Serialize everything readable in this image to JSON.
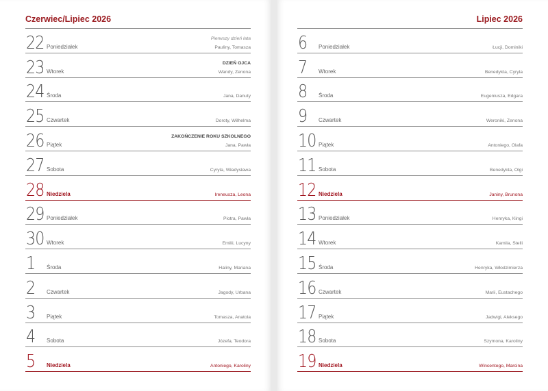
{
  "accent_color": "#a0141e",
  "left": {
    "title": "Czerwiec/Lipiec 2026",
    "days": [
      {
        "num": "22",
        "day": "Poniedziałek",
        "names": "Pauliny, Tomasza",
        "event": "Pierwszy dzień lata",
        "event_style": "italic"
      },
      {
        "num": "23",
        "day": "Wtorek",
        "names": "Wandy, Zenona",
        "event": "DZIEŃ OJCA",
        "event_style": "bold"
      },
      {
        "num": "24",
        "day": "Środa",
        "names": "Jana, Danuty"
      },
      {
        "num": "25",
        "day": "Czwartek",
        "names": "Doroty, Wilhelma"
      },
      {
        "num": "26",
        "day": "Piątek",
        "names": "Jana, Pawła",
        "event": "ZAKOŃCZENIE ROKU SZKOLNEGO",
        "event_style": "bold"
      },
      {
        "num": "27",
        "day": "Sobota",
        "names": "Cyryla, Władysława"
      },
      {
        "num": "28",
        "day": "Niedziela",
        "names": "Ireneusza, Leona",
        "sunday": true
      },
      {
        "num": "29",
        "day": "Poniedziałek",
        "names": "Piotra, Pawła"
      },
      {
        "num": "30",
        "day": "Wtorek",
        "names": "Emilii, Lucyny"
      },
      {
        "num": "1",
        "day": "Środa",
        "names": "Haliny, Mariana"
      },
      {
        "num": "2",
        "day": "Czwartek",
        "names": "Jagody, Urbana"
      },
      {
        "num": "3",
        "day": "Piątek",
        "names": "Tomasza, Anatola"
      },
      {
        "num": "4",
        "day": "Sobota",
        "names": "Józefa, Teodora"
      },
      {
        "num": "5",
        "day": "Niedziela",
        "names": "Antoniego, Karoliny",
        "sunday": true
      }
    ]
  },
  "right": {
    "title": "Lipiec 2026",
    "days": [
      {
        "num": "6",
        "day": "Poniedziałek",
        "names": "Łucji, Dominiki"
      },
      {
        "num": "7",
        "day": "Wtorek",
        "names": "Benedykta, Cyryla"
      },
      {
        "num": "8",
        "day": "Środa",
        "names": "Eugeniusza, Edgara"
      },
      {
        "num": "9",
        "day": "Czwartek",
        "names": "Weroniki, Zenona"
      },
      {
        "num": "10",
        "day": "Piątek",
        "names": "Antoniego, Olafa"
      },
      {
        "num": "11",
        "day": "Sobota",
        "names": "Benedykta, Olgi"
      },
      {
        "num": "12",
        "day": "Niedziela",
        "names": "Janiny, Brunona",
        "sunday": true
      },
      {
        "num": "13",
        "day": "Poniedziałek",
        "names": "Henryka, Kingi"
      },
      {
        "num": "14",
        "day": "Wtorek",
        "names": "Kamila, Stelli"
      },
      {
        "num": "15",
        "day": "Środa",
        "names": "Henryka, Włodzimierza"
      },
      {
        "num": "16",
        "day": "Czwartek",
        "names": "Marii, Eustachego"
      },
      {
        "num": "17",
        "day": "Piątek",
        "names": "Jadwigi, Aleksego"
      },
      {
        "num": "18",
        "day": "Sobota",
        "names": "Szymona, Karoliny"
      },
      {
        "num": "19",
        "day": "Niedziela",
        "names": "Wincentego, Marcina",
        "sunday": true
      }
    ]
  }
}
